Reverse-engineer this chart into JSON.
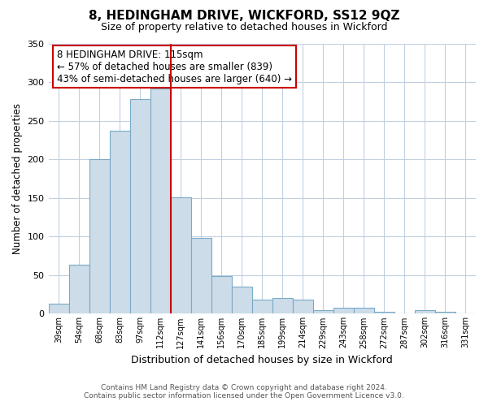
{
  "title": "8, HEDINGHAM DRIVE, WICKFORD, SS12 9QZ",
  "subtitle": "Size of property relative to detached houses in Wickford",
  "xlabel": "Distribution of detached houses by size in Wickford",
  "ylabel": "Number of detached properties",
  "categories": [
    "39sqm",
    "54sqm",
    "68sqm",
    "83sqm",
    "97sqm",
    "112sqm",
    "127sqm",
    "141sqm",
    "156sqm",
    "170sqm",
    "185sqm",
    "199sqm",
    "214sqm",
    "229sqm",
    "243sqm",
    "258sqm",
    "272sqm",
    "287sqm",
    "302sqm",
    "316sqm",
    "331sqm"
  ],
  "values": [
    13,
    64,
    200,
    237,
    278,
    292,
    151,
    98,
    49,
    35,
    18,
    20,
    18,
    5,
    8,
    8,
    2,
    0,
    5,
    2,
    0
  ],
  "bar_color": "#ccdce8",
  "bar_edge_color": "#7aaac8",
  "highlight_index": 5,
  "highlight_line_color": "#cc0000",
  "ylim": [
    0,
    350
  ],
  "yticks": [
    0,
    50,
    100,
    150,
    200,
    250,
    300,
    350
  ],
  "annotation_title": "8 HEDINGHAM DRIVE: 115sqm",
  "annotation_line1": "← 57% of detached houses are smaller (839)",
  "annotation_line2": "43% of semi-detached houses are larger (640) →",
  "annotation_box_color": "#ffffff",
  "annotation_box_edge": "#cc0000",
  "footer_line1": "Contains HM Land Registry data © Crown copyright and database right 2024.",
  "footer_line2": "Contains public sector information licensed under the Open Government Licence v3.0.",
  "background_color": "#ffffff",
  "grid_color": "#c0d0e0"
}
